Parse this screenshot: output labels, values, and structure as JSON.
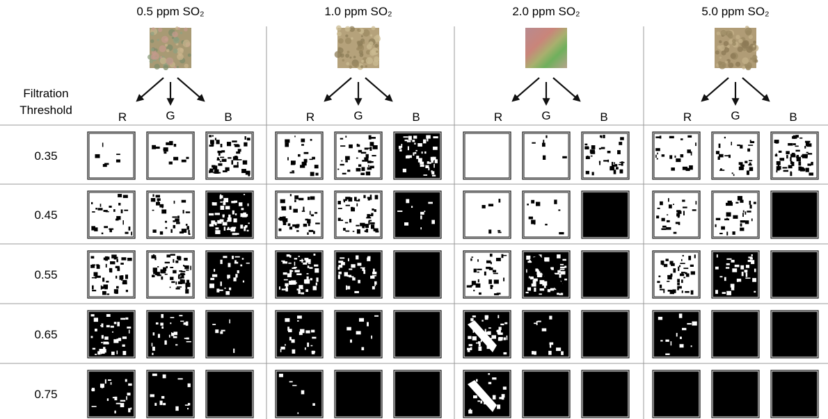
{
  "row_header": {
    "line1": "Filtration",
    "line2": "Threshold"
  },
  "columns": [
    {
      "title": "0.5 ppm SO₂",
      "swatch": {
        "base": "#a89a74",
        "spots": [
          "#c9b48c",
          "#7f8c6b",
          "#c49a8c",
          "#8fa080"
        ]
      }
    },
    {
      "title": "1.0 ppm SO₂",
      "swatch": {
        "base": "#b5a27b",
        "spots": [
          "#9c8a62",
          "#cbbb92",
          "#8e7d58"
        ]
      }
    },
    {
      "title": "2.0 ppm SO₂",
      "swatch": {
        "base": "gradient",
        "stops": [
          "#b88a8f",
          "#c9857a",
          "#a8b06e",
          "#6fb05c",
          "#b6a48c"
        ]
      }
    },
    {
      "title": "5.0 ppm SO₂",
      "swatch": {
        "base": "#b09c76",
        "spots": [
          "#8c7a56",
          "#c4b28a",
          "#9a8862"
        ]
      }
    }
  ],
  "channels": [
    "R",
    "G",
    "B"
  ],
  "thresholds": [
    "0.35",
    "0.45",
    "0.55",
    "0.65",
    "0.75"
  ],
  "black_fraction": [
    [
      [
        0.02,
        0.07,
        0.4
      ],
      [
        0.15,
        0.3,
        0.65
      ],
      [
        0.0,
        0.02,
        0.3
      ],
      [
        0.15,
        0.22,
        0.45
      ]
    ],
    [
      [
        0.2,
        0.25,
        0.55
      ],
      [
        0.3,
        0.4,
        0.95
      ],
      [
        0.02,
        0.06,
        1.0
      ],
      [
        0.18,
        0.22,
        1.0
      ]
    ],
    [
      [
        0.4,
        0.45,
        0.8
      ],
      [
        0.55,
        0.75,
        1.0
      ],
      [
        0.25,
        0.55,
        1.0
      ],
      [
        0.35,
        0.75,
        1.0
      ]
    ],
    [
      [
        0.7,
        0.8,
        0.98
      ],
      [
        0.85,
        0.96,
        1.0
      ],
      [
        0.65,
        0.93,
        1.0
      ],
      [
        0.92,
        1.0,
        1.0
      ]
    ],
    [
      [
        0.85,
        0.92,
        1.0
      ],
      [
        0.98,
        1.0,
        1.0
      ],
      [
        0.88,
        1.0,
        1.0
      ],
      [
        1.0,
        1.0,
        1.0
      ]
    ]
  ]
}
